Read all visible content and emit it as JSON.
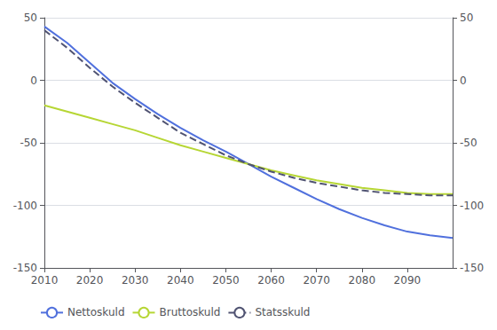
{
  "chart_data": {
    "type": "line",
    "x": [
      2010,
      2015,
      2020,
      2025,
      2030,
      2035,
      2040,
      2045,
      2050,
      2055,
      2060,
      2065,
      2070,
      2075,
      2080,
      2085,
      2090,
      2095,
      2100
    ],
    "series": [
      {
        "name": "Nettoskuld",
        "line_style": "solid",
        "values": [
          43,
          30,
          14,
          -2,
          -15,
          -27,
          -38,
          -48,
          -57,
          -67,
          -77,
          -86,
          -95,
          -103,
          -110,
          -116,
          -121,
          -124,
          -126
        ]
      },
      {
        "name": "Bruttoskuld",
        "line_style": "solid",
        "values": [
          -20,
          -25,
          -30,
          -35,
          -40,
          -46,
          -52,
          -57,
          -62,
          -67,
          -72,
          -76,
          -80,
          -83,
          -86,
          -88,
          -90,
          -91,
          -91
        ]
      },
      {
        "name": "Statsskuld",
        "line_style": "dashed",
        "values": [
          40,
          26,
          10,
          -5,
          -18,
          -30,
          -42,
          -51,
          -60,
          -67,
          -73,
          -78,
          -82,
          -85,
          -88,
          -90,
          -91,
          -92,
          -92
        ]
      }
    ],
    "xlim": [
      2010,
      2100
    ],
    "xticks": [
      2010,
      2020,
      2030,
      2040,
      2050,
      2060,
      2070,
      2080,
      2090
    ],
    "ylim": [
      -150,
      50
    ],
    "yticks": [
      -150,
      -100,
      -50,
      0,
      50
    ],
    "y2lim": [
      -150,
      50
    ],
    "y2ticks": [
      -150,
      -100,
      -50,
      0,
      50
    ],
    "grid": true,
    "legend": "bottom left"
  }
}
